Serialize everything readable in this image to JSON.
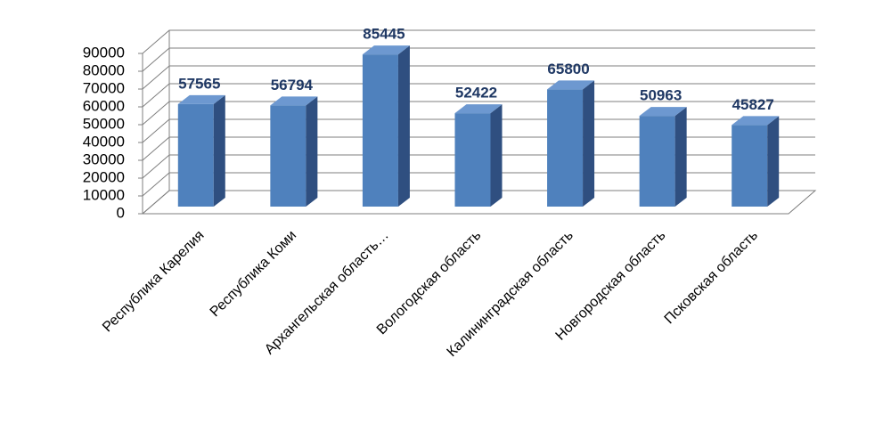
{
  "chart_data": {
    "type": "bar3d",
    "categories": [
      "Республика Карелия",
      "Республика Коми",
      "Архангельская область…",
      "Вологодская область",
      "Калининградская область",
      "Новгородская область",
      "Псковская область"
    ],
    "values": [
      57565,
      56794,
      85445,
      52422,
      65800,
      50963,
      45827
    ],
    "color": "#4f81bd",
    "ylim": [
      0,
      90000
    ],
    "yticks": [
      0,
      10000,
      20000,
      30000,
      40000,
      50000,
      60000,
      70000,
      80000,
      90000
    ],
    "grid": true
  }
}
